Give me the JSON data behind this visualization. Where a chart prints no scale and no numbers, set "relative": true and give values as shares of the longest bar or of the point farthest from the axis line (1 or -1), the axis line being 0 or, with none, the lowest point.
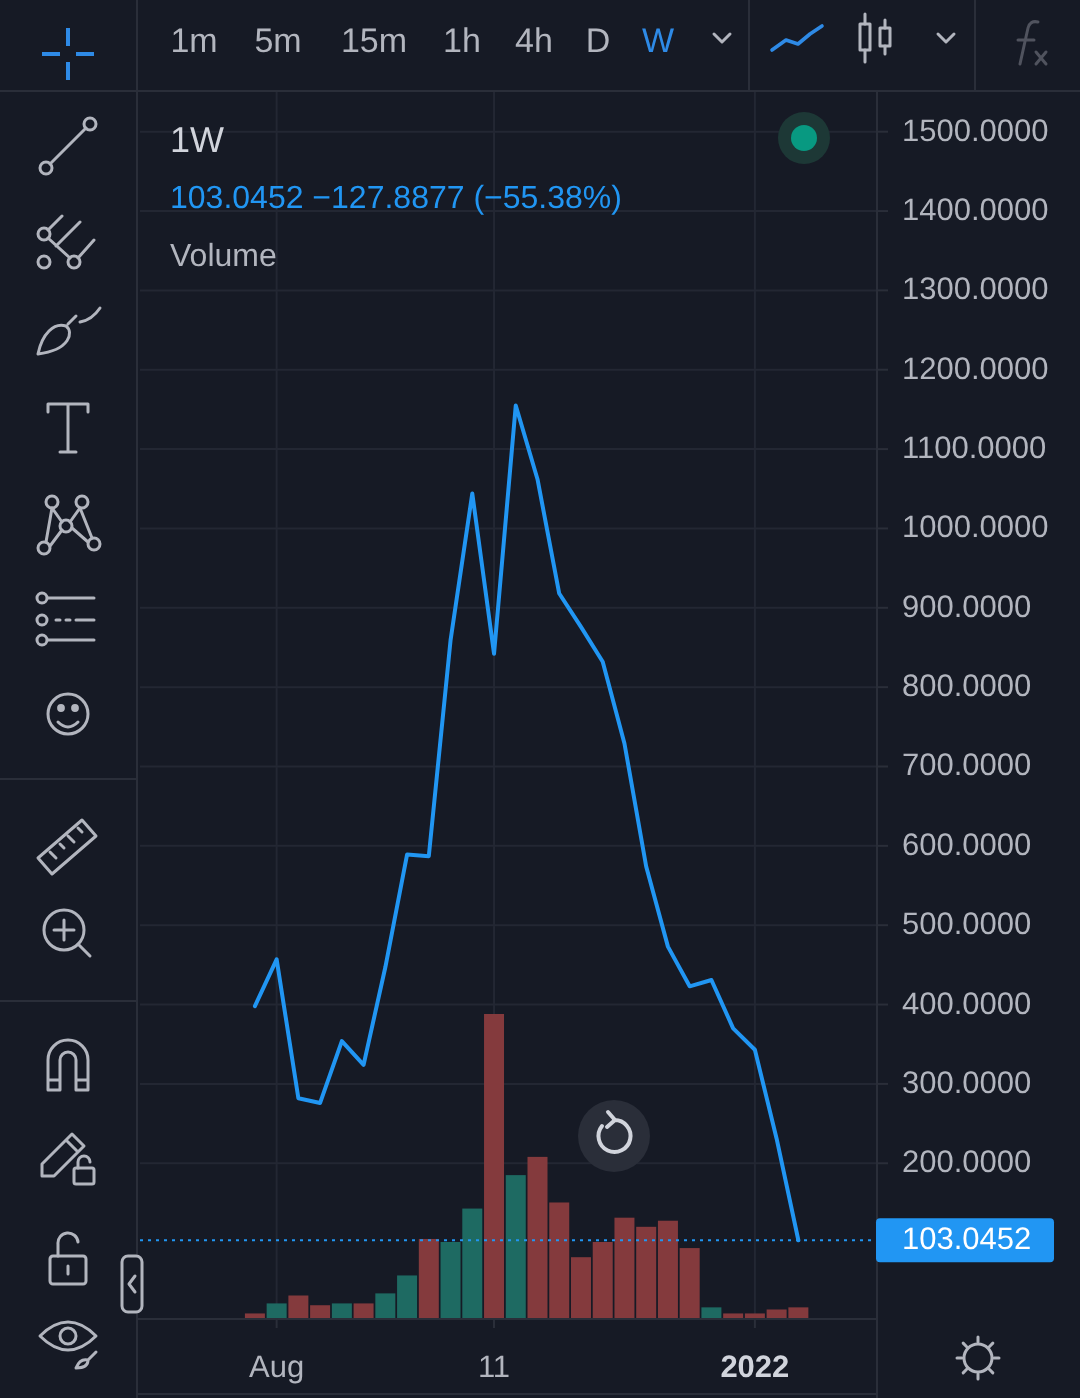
{
  "chart_data": [
    {
      "type": "line",
      "title": "1W",
      "subtitle": "103.0452 −127.8877 (−55.38%)",
      "annotations": [
        "1m",
        "5m",
        "15m",
        "1h",
        "4h",
        "D",
        "W"
      ],
      "x": [
        "2021-07-26",
        "2021-08-02",
        "2021-08-09",
        "2021-08-16",
        "2021-08-23",
        "2021-08-30",
        "2021-09-06",
        "2021-09-13",
        "2021-09-20",
        "2021-09-27",
        "2021-10-04",
        "2021-10-11",
        "2021-10-18",
        "2021-10-25",
        "2021-11-01",
        "2021-11-08",
        "2021-11-15",
        "2021-11-22",
        "2021-11-29",
        "2021-12-06",
        "2021-12-13",
        "2021-12-20",
        "2021-12-27",
        "2022-01-03",
        "2022-01-10",
        "2022-01-17"
      ],
      "series": [
        {
          "color": "#2196f3",
          "values": [
            398,
            457,
            282,
            276,
            354,
            324,
            447,
            589,
            587,
            859,
            1044,
            842,
            1155,
            1062,
            918,
            876,
            832,
            729,
            574,
            473,
            423,
            431,
            370,
            343,
            231,
            103
          ]
        }
      ],
      "xlim": [
        "2021-06-19",
        "2022-02-11"
      ],
      "xticks": [
        {
          "value": "2021-08-02",
          "label": "Aug"
        },
        {
          "value": "2021-10-11",
          "label": "11"
        },
        {
          "value": "2022-01-03",
          "label": "2022"
        }
      ],
      "ylim": [
        5,
        1550
      ],
      "yticks": [
        {
          "value": 200,
          "label": "200.0000"
        },
        {
          "value": 300,
          "label": "300.0000"
        },
        {
          "value": 400,
          "label": "400.0000"
        },
        {
          "value": 500,
          "label": "500.0000"
        },
        {
          "value": 600,
          "label": "600.0000"
        },
        {
          "value": 700,
          "label": "700.0000"
        },
        {
          "value": 800,
          "label": "800.0000"
        },
        {
          "value": 900,
          "label": "900.0000"
        },
        {
          "value": 1000,
          "label": "1000.0000"
        },
        {
          "value": 1100,
          "label": "1100.0000"
        },
        {
          "value": 1200,
          "label": "1200.0000"
        },
        {
          "value": 1300,
          "label": "1300.0000"
        },
        {
          "value": 1400,
          "label": "1400.0000"
        },
        {
          "value": 1500,
          "label": "1500.0000"
        }
      ],
      "grid": true,
      "ref_lines": [
        {
          "axis": "y",
          "value": 103.0452,
          "label": "103.0452",
          "color": "#2196f3",
          "line_style": "dotted"
        }
      ]
    },
    {
      "type": "bar",
      "title": "Volume",
      "relative": true,
      "x": [
        "2021-07-26",
        "2021-08-02",
        "2021-08-09",
        "2021-08-16",
        "2021-08-23",
        "2021-08-30",
        "2021-09-06",
        "2021-09-13",
        "2021-09-20",
        "2021-09-27",
        "2021-10-04",
        "2021-10-11",
        "2021-10-18",
        "2021-10-25",
        "2021-11-01",
        "2021-11-08",
        "2021-11-15",
        "2021-11-22",
        "2021-11-29",
        "2021-12-06",
        "2021-12-13",
        "2021-12-20",
        "2021-12-27",
        "2022-01-03",
        "2022-01-10",
        "2022-01-17"
      ],
      "xlim": [
        "2021-06-19",
        "2022-02-11"
      ],
      "values": [
        0.015,
        0.048,
        0.074,
        0.042,
        0.048,
        0.048,
        0.081,
        0.14,
        0.26,
        0.25,
        0.36,
        1,
        0.47,
        0.53,
        0.38,
        0.2,
        0.25,
        0.33,
        0.3,
        0.32,
        0.23,
        0.035,
        0.015,
        0.015,
        0.028,
        0.035
      ],
      "colors": [
        "#843a3d",
        "#1e6a62",
        "#843a3d",
        "#843a3d",
        "#1e6a62",
        "#843a3d",
        "#1e6a62",
        "#1e6a62",
        "#843a3d",
        "#1e6a62",
        "#1e6a62",
        "#843a3d",
        "#1e6a62",
        "#843a3d",
        "#843a3d",
        "#843a3d",
        "#843a3d",
        "#843a3d",
        "#843a3d",
        "#843a3d",
        "#843a3d",
        "#1e6a62",
        "#843a3d",
        "#843a3d",
        "#843a3d",
        "#843a3d"
      ]
    }
  ]
}
